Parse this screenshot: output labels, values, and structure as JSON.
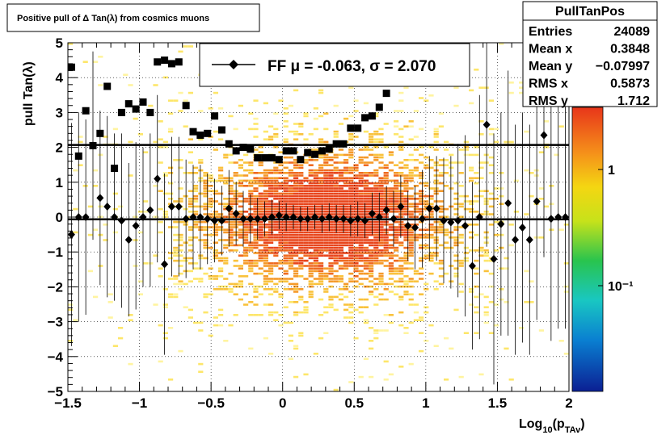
{
  "title_box": {
    "text": "Positive pull of Δ Tan(λ) from cosmics muons"
  },
  "stats": {
    "name": "PullTanPos",
    "rows": [
      {
        "label": "Entries",
        "value": "24089"
      },
      {
        "label": "Mean x",
        "value": "0.3848"
      },
      {
        "label": "Mean y",
        "value": "−0.07997"
      },
      {
        "label": "RMS x",
        "value": "0.5873"
      },
      {
        "label": "RMS y",
        "value": "1.712"
      }
    ]
  },
  "legend": {
    "text": "FF μ = -0.063, σ =   2.070"
  },
  "colors": {
    "markers": "#000000",
    "frame": "#000000"
  },
  "chart_data": {
    "type": "scatter",
    "title": "Positive pull of Δ Tan(λ) from cosmics muons",
    "xlabel": "Log10(pTAv)",
    "ylabel": "pull Tan(λ)",
    "xlim": [
      -1.5,
      2
    ],
    "ylim": [
      -5,
      5
    ],
    "x_ticks": [
      "−1.5",
      "−1",
      "−0.5",
      "0",
      "0.5",
      "1",
      "1.5",
      "2"
    ],
    "y_ticks": [
      "−5",
      "−4",
      "−3",
      "−2",
      "−1",
      "0",
      "1",
      "2",
      "3",
      "4",
      "5"
    ],
    "colorbar_ticks": [
      "1",
      "10⁻¹"
    ],
    "grid": true,
    "reference_lines": [
      2.07,
      -0.063
    ],
    "series": [
      {
        "marker": "square",
        "x": [
          -1.475,
          -1.425,
          -1.375,
          -1.325,
          -1.275,
          -1.225,
          -1.175,
          -1.125,
          -1.075,
          -1.025,
          -0.975,
          -0.925,
          -0.875,
          -0.825,
          -0.775,
          -0.725,
          -0.675,
          -0.625,
          -0.575,
          -0.525,
          -0.475,
          -0.425,
          -0.375,
          -0.325,
          -0.275,
          -0.225,
          -0.175,
          -0.125,
          -0.075,
          -0.025,
          0.025,
          0.075,
          0.125,
          0.175,
          0.225,
          0.275,
          0.325,
          0.375,
          0.425,
          0.475,
          0.525,
          0.575,
          0.625,
          0.675,
          0.725
        ],
        "y": [
          4.3,
          1.75,
          3.05,
          2.05,
          2.4,
          3.75,
          1.4,
          3.0,
          3.25,
          3.1,
          3.3,
          3.0,
          4.45,
          4.5,
          4.4,
          4.45,
          3.2,
          2.45,
          2.35,
          2.4,
          2.9,
          2.5,
          2.1,
          1.9,
          2.0,
          1.95,
          1.7,
          1.7,
          1.7,
          1.65,
          1.9,
          1.9,
          1.65,
          1.85,
          1.8,
          1.9,
          1.95,
          2.1,
          2.1,
          2.55,
          2.55,
          2.85,
          2.9,
          3.15,
          3.55
        ]
      },
      {
        "marker": "diamond",
        "x": [
          -1.475,
          -1.425,
          -1.375,
          -1.325,
          -1.275,
          -1.225,
          -1.175,
          -1.125,
          -1.075,
          -1.025,
          -0.975,
          -0.925,
          -0.875,
          -0.825,
          -0.775,
          -0.725,
          -0.675,
          -0.625,
          -0.575,
          -0.525,
          -0.475,
          -0.425,
          -0.375,
          -0.325,
          -0.275,
          -0.225,
          -0.175,
          -0.125,
          -0.075,
          -0.025,
          0.025,
          0.075,
          0.125,
          0.175,
          0.225,
          0.275,
          0.325,
          0.375,
          0.425,
          0.475,
          0.525,
          0.575,
          0.625,
          0.675,
          0.725,
          0.775,
          0.825,
          0.875,
          0.925,
          0.975,
          1.025,
          1.075,
          1.125,
          1.175,
          1.225,
          1.275,
          1.325,
          1.375,
          1.425,
          1.475,
          1.525,
          1.575,
          1.625,
          1.675,
          1.725,
          1.775,
          1.825,
          1.875,
          1.925,
          1.975
        ],
        "y": [
          -0.5,
          0.0,
          0.0,
          2.05,
          0.55,
          0.3,
          0.0,
          -0.1,
          -0.65,
          -0.25,
          0.0,
          0.2,
          1.1,
          -1.35,
          0.3,
          0.3,
          -0.05,
          0.0,
          0.0,
          -0.05,
          -0.1,
          -0.1,
          0.25,
          0.1,
          -0.05,
          -0.05,
          -0.05,
          -0.05,
          0.0,
          0.05,
          0.0,
          0.0,
          -0.05,
          -0.05,
          0.0,
          -0.05,
          0.0,
          -0.05,
          -0.05,
          -0.1,
          -0.05,
          -0.1,
          0.1,
          0.0,
          0.2,
          -0.05,
          0.3,
          -0.25,
          -0.3,
          -0.05,
          0.25,
          0.25,
          -0.1,
          -0.15,
          -0.1,
          -0.25,
          -1.4,
          0.0,
          2.65,
          -1.2,
          -0.2,
          0.4,
          -0.65,
          -0.3,
          -0.65,
          0.45,
          2.35,
          -0.05,
          0.0,
          0.0
        ],
        "err": [
          3.2,
          3.0,
          2.8,
          2.7,
          2.5,
          2.6,
          2.4,
          2.5,
          2.2,
          2.4,
          2.0,
          2.2,
          2.4,
          2.6,
          2.0,
          2.0,
          1.7,
          1.5,
          1.5,
          1.3,
          1.2,
          1.0,
          1.1,
          0.9,
          0.8,
          0.7,
          0.6,
          0.5,
          0.5,
          0.4,
          0.4,
          0.35,
          0.35,
          0.35,
          0.35,
          0.4,
          0.4,
          0.4,
          0.4,
          0.45,
          0.5,
          0.5,
          0.6,
          0.7,
          0.7,
          0.8,
          0.9,
          1.0,
          1.2,
          1.4,
          1.5,
          1.5,
          1.8,
          1.9,
          2.2,
          2.6,
          2.4,
          3.5,
          3.5,
          3.6,
          3.2,
          3.8,
          3.3,
          3.3,
          3.3,
          3.4,
          3.5,
          3.5,
          3.2,
          3.2
        ]
      }
    ]
  }
}
